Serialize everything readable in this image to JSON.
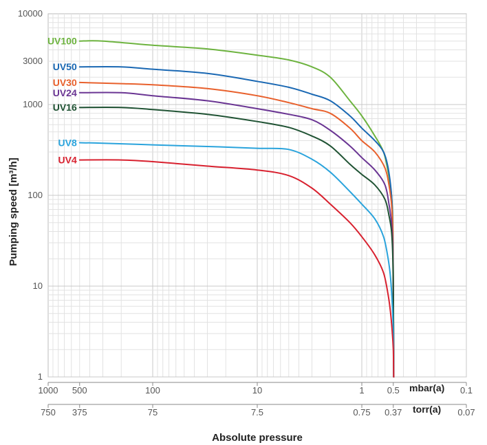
{
  "chart_data": {
    "type": "line",
    "title": "",
    "xlabel": "Absolute pressure",
    "ylabel": "Pumping speed [m³/h]",
    "x_scale": "log",
    "y_scale": "log",
    "x_unit_primary": "mbar(a)",
    "x_unit_secondary": "torr(a)",
    "xlim": [
      1000,
      0.1
    ],
    "ylim": [
      1,
      10000
    ],
    "grid": true,
    "y_ticks": [
      {
        "value": 1,
        "label": "1"
      },
      {
        "value": 10,
        "label": "10"
      },
      {
        "value": 100,
        "label": "100"
      },
      {
        "value": 1000,
        "label": "1000"
      },
      {
        "value": 3000,
        "label": "3000"
      },
      {
        "value": 10000,
        "label": "10000"
      }
    ],
    "x_ticks_mbar": [
      {
        "value": 1000,
        "label": "1000"
      },
      {
        "value": 500,
        "label": "500"
      },
      {
        "value": 100,
        "label": "100"
      },
      {
        "value": 10,
        "label": "10"
      },
      {
        "value": 1,
        "label": "1"
      },
      {
        "value": 0.5,
        "label": "0.5"
      },
      {
        "value": 0.1,
        "label": "0.1"
      }
    ],
    "x_ticks_torr": [
      {
        "value": 1000,
        "label": "750"
      },
      {
        "value": 500,
        "label": "375"
      },
      {
        "value": 100,
        "label": "75"
      },
      {
        "value": 10,
        "label": "7.5"
      },
      {
        "value": 1,
        "label": "0.75"
      },
      {
        "value": 0.5,
        "label": "0.37"
      },
      {
        "value": 0.1,
        "label": "0.07"
      }
    ],
    "series": [
      {
        "name": "UV100",
        "color": "#6db33f",
        "x": [
          500,
          300,
          100,
          30,
          10,
          5,
          3,
          2,
          1.3,
          1,
          0.75,
          0.62,
          0.56,
          0.52,
          0.505,
          0.5,
          0.495
        ],
        "y": [
          5000,
          5000,
          4500,
          4100,
          3500,
          3100,
          2600,
          2000,
          1100,
          750,
          450,
          300,
          180,
          100,
          50,
          10,
          1
        ]
      },
      {
        "name": "UV50",
        "color": "#1a68b3",
        "x": [
          500,
          200,
          100,
          30,
          10,
          5,
          3,
          2,
          1.3,
          1,
          0.75,
          0.62,
          0.56,
          0.52,
          0.505,
          0.5,
          0.495
        ],
        "y": [
          2600,
          2600,
          2450,
          2200,
          1800,
          1550,
          1300,
          1100,
          750,
          550,
          400,
          300,
          200,
          100,
          40,
          10,
          1
        ]
      },
      {
        "name": "UV30",
        "color": "#e8602c",
        "x": [
          500,
          200,
          100,
          30,
          10,
          5,
          3,
          2,
          1.3,
          1,
          0.75,
          0.6,
          0.55,
          0.52,
          0.505,
          0.5,
          0.495
        ],
        "y": [
          1750,
          1700,
          1650,
          1500,
          1250,
          1050,
          900,
          800,
          550,
          400,
          300,
          200,
          130,
          80,
          40,
          10,
          1
        ]
      },
      {
        "name": "UV24",
        "color": "#6a3593",
        "x": [
          500,
          200,
          100,
          30,
          10,
          5,
          3,
          2,
          1.3,
          1,
          0.75,
          0.6,
          0.55,
          0.52,
          0.505,
          0.5,
          0.495
        ],
        "y": [
          1350,
          1350,
          1250,
          1100,
          900,
          780,
          680,
          520,
          350,
          260,
          190,
          130,
          80,
          50,
          25,
          8,
          1
        ]
      },
      {
        "name": "UV16",
        "color": "#1f5233",
        "x": [
          500,
          200,
          100,
          30,
          10,
          5,
          3,
          2,
          1.3,
          1,
          0.75,
          0.6,
          0.55,
          0.52,
          0.505,
          0.5,
          0.495
        ],
        "y": [
          930,
          930,
          880,
          780,
          650,
          560,
          450,
          350,
          220,
          170,
          130,
          90,
          60,
          40,
          20,
          8,
          1
        ]
      },
      {
        "name": "UV8",
        "color": "#29a3dc",
        "x": [
          500,
          300,
          100,
          30,
          10,
          5,
          3,
          2,
          1.3,
          1,
          0.75,
          0.62,
          0.56,
          0.53,
          0.51,
          0.5,
          0.495
        ],
        "y": [
          380,
          375,
          360,
          345,
          330,
          320,
          250,
          180,
          110,
          80,
          55,
          35,
          20,
          12,
          6,
          3,
          1
        ]
      },
      {
        "name": "UV4",
        "color": "#d8202e",
        "x": [
          500,
          200,
          100,
          30,
          10,
          5,
          3,
          2,
          1.3,
          1,
          0.75,
          0.62,
          0.56,
          0.53,
          0.51,
          0.5,
          0.495
        ],
        "y": [
          245,
          245,
          235,
          210,
          190,
          165,
          120,
          80,
          50,
          35,
          22,
          14,
          8,
          5,
          3,
          2,
          1
        ]
      }
    ]
  }
}
